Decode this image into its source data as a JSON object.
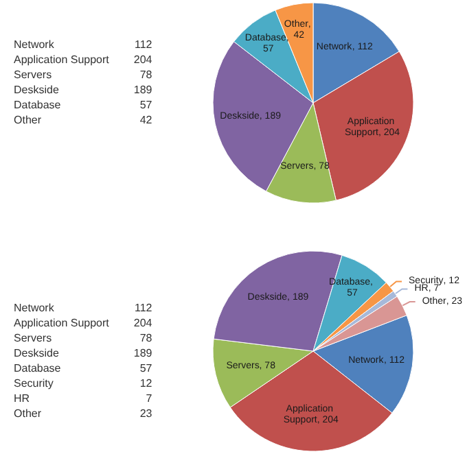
{
  "chart_data": [
    {
      "type": "pie",
      "categories": [
        "Network",
        "Application Support",
        "Servers",
        "Deskside",
        "Database",
        "Other"
      ],
      "values": [
        112,
        204,
        78,
        189,
        57,
        42
      ],
      "colors": [
        "#4f81bd",
        "#c0504d",
        "#9bbb59",
        "#8064a2",
        "#4bacc6",
        "#f79646"
      ],
      "value_labels": [
        ", 112",
        ", 204",
        ", 78",
        ", 189",
        ", 57",
        ", 42"
      ],
      "annotations": [
        "Network",
        "112",
        "Application Support",
        "204",
        "Servers",
        "78",
        "Deskside",
        "189",
        "Database",
        "57",
        "Other",
        "42"
      ],
      "legend": false
    },
    {
      "type": "pie",
      "categories": [
        "Network",
        "Application Support",
        "Servers",
        "Deskside",
        "Database",
        "Security",
        "HR",
        "Other"
      ],
      "values": [
        112,
        204,
        78,
        189,
        57,
        12,
        7,
        23
      ],
      "colors": [
        "#4f81bd",
        "#c0504d",
        "#9bbb59",
        "#8064a2",
        "#4bacc6",
        "#f79646",
        "#a7b9d9",
        "#d99694"
      ],
      "value_labels": [
        ", 112",
        ", 204",
        ", 78",
        ", 189",
        ", 57",
        ", 12",
        ", 7",
        ", 23"
      ],
      "annotations": [
        "Network",
        "112",
        "Application Support",
        "204",
        "Servers",
        "78",
        "Deskside",
        "189",
        "Database",
        "57",
        "Security",
        "12",
        "HR",
        "7",
        "Other",
        "23"
      ],
      "legend": false
    }
  ]
}
